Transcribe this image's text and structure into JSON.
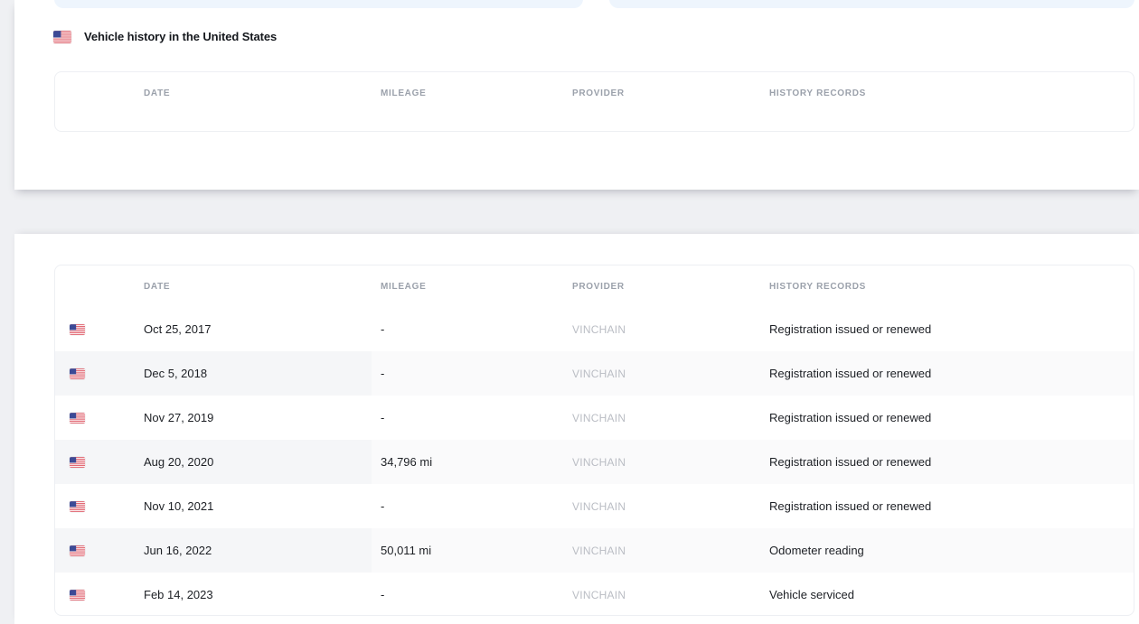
{
  "section_title": {
    "icon": "us-flag-icon",
    "text": "Vehicle history in the United States"
  },
  "empty_table": {
    "headers": [
      "DATE",
      "MILEAGE",
      "PROVIDER",
      "HISTORY RECORDS"
    ]
  },
  "history_table": {
    "headers": [
      "DATE",
      "MILEAGE",
      "PROVIDER",
      "HISTORY RECORDS"
    ],
    "rows": [
      {
        "flag": "us-flag-icon",
        "date": "Oct 25, 2017",
        "mileage": "-",
        "provider": "VINCHAIN",
        "record": "Registration issued or renewed"
      },
      {
        "flag": "us-flag-icon",
        "date": "Dec 5, 2018",
        "mileage": "-",
        "provider": "VINCHAIN",
        "record": "Registration issued or renewed"
      },
      {
        "flag": "us-flag-icon",
        "date": "Nov 27, 2019",
        "mileage": "-",
        "provider": "VINCHAIN",
        "record": "Registration issued or renewed"
      },
      {
        "flag": "us-flag-icon",
        "date": "Aug 20, 2020",
        "mileage": "34,796 mi",
        "provider": "VINCHAIN",
        "record": "Registration issued or renewed"
      },
      {
        "flag": "us-flag-icon",
        "date": "Nov 10, 2021",
        "mileage": "-",
        "provider": "VINCHAIN",
        "record": "Registration issued or renewed"
      },
      {
        "flag": "us-flag-icon",
        "date": "Jun 16, 2022",
        "mileage": "50,011 mi",
        "provider": "VINCHAIN",
        "record": "Odometer reading"
      },
      {
        "flag": "us-flag-icon",
        "date": "Feb 14, 2023",
        "mileage": "-",
        "provider": "VINCHAIN",
        "record": "Vehicle serviced"
      }
    ]
  },
  "colors": {
    "page_background": "#eff0f3",
    "section_background": "#ffffff",
    "chip_blue": "#eef5fd",
    "card_border": "#edeff3",
    "header_text": "#9ba1ab",
    "body_text": "#1c1f24",
    "provider_text": "#babdc4",
    "row_stripe": "#fafafb",
    "row_stripe_dark": "#f5f6f8",
    "flag_red": "#dd5562",
    "flag_blue": "#3c4a96"
  }
}
